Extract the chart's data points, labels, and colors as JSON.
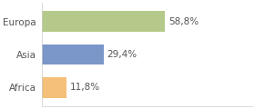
{
  "categories": [
    "Europa",
    "Asia",
    "Africa"
  ],
  "values": [
    58.8,
    29.4,
    11.8
  ],
  "bar_colors": [
    "#b5c98a",
    "#7b96c8",
    "#f5c07a"
  ],
  "labels": [
    "58,8%",
    "29,4%",
    "11,8%"
  ],
  "xlim": [
    0,
    100
  ],
  "background_color": "#ffffff",
  "bar_height": 0.62,
  "label_fontsize": 7.5,
  "tick_fontsize": 7.5,
  "figwidth": 2.8,
  "figheight": 1.2,
  "dpi": 100
}
